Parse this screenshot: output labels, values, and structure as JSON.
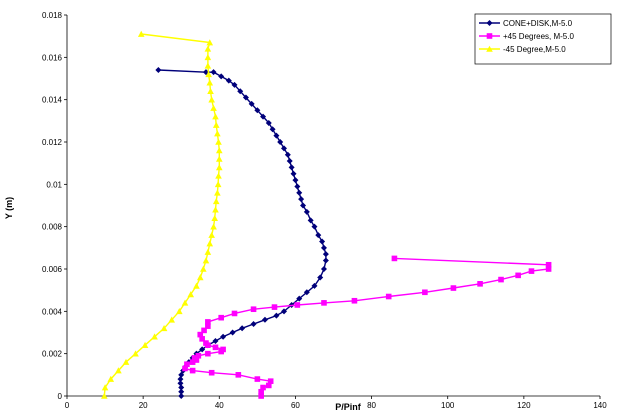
{
  "chart_data": {
    "type": "scatter",
    "xlabel": "P/Pinf",
    "ylabel": "Y (m)",
    "xlim": [
      0,
      140
    ],
    "ylim": [
      0,
      0.018
    ],
    "x_ticks": [
      "0",
      "20",
      "40",
      "60",
      "80",
      "100",
      "120",
      "140"
    ],
    "y_ticks": [
      "0",
      "0.002",
      "0.004",
      "0.006",
      "0.008",
      "0.01",
      "0.012",
      "0.014",
      "0.016",
      "0.018"
    ],
    "grid": false,
    "legend_position": "top-right",
    "series": [
      {
        "name": "CONE+DISK,M-5.0",
        "color": "#00007a",
        "marker": "diamond",
        "points": [
          [
            30.0,
            0.0
          ],
          [
            30.0,
            0.0002
          ],
          [
            30.0,
            0.0004
          ],
          [
            29.8,
            0.0006
          ],
          [
            29.8,
            0.0008
          ],
          [
            30.0,
            0.001
          ],
          [
            30.5,
            0.0012
          ],
          [
            31.2,
            0.0014
          ],
          [
            32.0,
            0.0016
          ],
          [
            33.0,
            0.0018
          ],
          [
            34.0,
            0.002
          ],
          [
            35.5,
            0.0022
          ],
          [
            37.0,
            0.0024
          ],
          [
            39.0,
            0.0026
          ],
          [
            41.0,
            0.0028
          ],
          [
            43.5,
            0.003
          ],
          [
            46.0,
            0.0032
          ],
          [
            49.0,
            0.0034
          ],
          [
            52.0,
            0.0036
          ],
          [
            55.0,
            0.0038
          ],
          [
            57.0,
            0.004
          ],
          [
            59.0,
            0.0043
          ],
          [
            61.0,
            0.0046
          ],
          [
            63.0,
            0.0049
          ],
          [
            65.0,
            0.0052
          ],
          [
            66.5,
            0.0056
          ],
          [
            67.5,
            0.006
          ],
          [
            68.0,
            0.0064
          ],
          [
            68.0,
            0.0067
          ],
          [
            67.5,
            0.007
          ],
          [
            67.0,
            0.0073
          ],
          [
            66.0,
            0.0076
          ],
          [
            65.0,
            0.008
          ],
          [
            64.0,
            0.0083
          ],
          [
            63.0,
            0.0087
          ],
          [
            62.0,
            0.009
          ],
          [
            61.5,
            0.0093
          ],
          [
            61.0,
            0.0096
          ],
          [
            60.5,
            0.0099
          ],
          [
            60.0,
            0.0102
          ],
          [
            59.5,
            0.0105
          ],
          [
            59.0,
            0.0108
          ],
          [
            58.5,
            0.0111
          ],
          [
            58.0,
            0.0114
          ],
          [
            57.0,
            0.0117
          ],
          [
            56.0,
            0.012
          ],
          [
            55.0,
            0.0123
          ],
          [
            54.0,
            0.0126
          ],
          [
            53.0,
            0.0129
          ],
          [
            51.5,
            0.0132
          ],
          [
            50.0,
            0.0135
          ],
          [
            48.5,
            0.0138
          ],
          [
            47.0,
            0.0141
          ],
          [
            45.5,
            0.0144
          ],
          [
            44.0,
            0.0147
          ],
          [
            42.5,
            0.0149
          ],
          [
            40.5,
            0.0151
          ],
          [
            38.5,
            0.0153
          ],
          [
            36.5,
            0.0153
          ],
          [
            24.0,
            0.0154
          ]
        ]
      },
      {
        "name": "+45 Degrees, M-5.0",
        "color": "#ff00ff",
        "marker": "square",
        "points": [
          [
            51.0,
            0.0
          ],
          [
            51.0,
            0.0002
          ],
          [
            51.5,
            0.0004
          ],
          [
            53.0,
            0.0005
          ],
          [
            53.5,
            0.0007
          ],
          [
            50.0,
            0.0008
          ],
          [
            45.0,
            0.001
          ],
          [
            38.0,
            0.0011
          ],
          [
            33.0,
            0.0012
          ],
          [
            31.0,
            0.0013
          ],
          [
            31.5,
            0.0015
          ],
          [
            33.0,
            0.0016
          ],
          [
            34.0,
            0.0017
          ],
          [
            33.5,
            0.0018
          ],
          [
            34.5,
            0.0019
          ],
          [
            37.0,
            0.002
          ],
          [
            40.5,
            0.0021
          ],
          [
            41.0,
            0.0022
          ],
          [
            39.0,
            0.0023
          ],
          [
            37.0,
            0.0024
          ],
          [
            36.5,
            0.0025
          ],
          [
            35.5,
            0.0027
          ],
          [
            35.0,
            0.0029
          ],
          [
            36.0,
            0.0031
          ],
          [
            37.0,
            0.0033
          ],
          [
            37.0,
            0.0035
          ],
          [
            40.5,
            0.0037
          ],
          [
            44.0,
            0.0039
          ],
          [
            49.0,
            0.0041
          ],
          [
            54.5,
            0.0042
          ],
          [
            60.5,
            0.0043
          ],
          [
            67.5,
            0.0044
          ],
          [
            75.5,
            0.0045
          ],
          [
            84.5,
            0.0047
          ],
          [
            94.0,
            0.0049
          ],
          [
            101.5,
            0.0051
          ],
          [
            108.5,
            0.0053
          ],
          [
            114.0,
            0.0055
          ],
          [
            118.5,
            0.0057
          ],
          [
            122.0,
            0.0059
          ],
          [
            126.5,
            0.006
          ],
          [
            126.5,
            0.0062
          ],
          [
            86.0,
            0.0065
          ]
        ]
      },
      {
        "name": "-45 Degree,M-5.0",
        "color": "#ffff00",
        "marker": "triangle",
        "points": [
          [
            9.8,
            0.0
          ],
          [
            10.0,
            0.0004
          ],
          [
            11.5,
            0.0008
          ],
          [
            13.5,
            0.0012
          ],
          [
            15.5,
            0.0016
          ],
          [
            18.0,
            0.002
          ],
          [
            20.5,
            0.0024
          ],
          [
            23.0,
            0.0028
          ],
          [
            25.5,
            0.0032
          ],
          [
            27.5,
            0.0036
          ],
          [
            29.5,
            0.004
          ],
          [
            31.0,
            0.0044
          ],
          [
            32.5,
            0.0048
          ],
          [
            34.0,
            0.0052
          ],
          [
            35.0,
            0.0056
          ],
          [
            35.8,
            0.006
          ],
          [
            36.5,
            0.0064
          ],
          [
            37.0,
            0.0068
          ],
          [
            37.5,
            0.0072
          ],
          [
            38.0,
            0.0076
          ],
          [
            38.5,
            0.008
          ],
          [
            38.8,
            0.0084
          ],
          [
            39.0,
            0.0088
          ],
          [
            39.2,
            0.0092
          ],
          [
            39.5,
            0.0096
          ],
          [
            39.7,
            0.01
          ],
          [
            39.8,
            0.0104
          ],
          [
            40.0,
            0.0108
          ],
          [
            40.0,
            0.0112
          ],
          [
            40.0,
            0.0116
          ],
          [
            39.8,
            0.012
          ],
          [
            39.5,
            0.0124
          ],
          [
            39.2,
            0.0128
          ],
          [
            39.0,
            0.0132
          ],
          [
            38.5,
            0.0136
          ],
          [
            38.0,
            0.014
          ],
          [
            37.7,
            0.0144
          ],
          [
            37.5,
            0.0148
          ],
          [
            37.2,
            0.0152
          ],
          [
            37.0,
            0.0156
          ],
          [
            37.0,
            0.016
          ],
          [
            37.0,
            0.0164
          ],
          [
            37.5,
            0.0167
          ],
          [
            19.5,
            0.0171
          ]
        ]
      }
    ]
  }
}
